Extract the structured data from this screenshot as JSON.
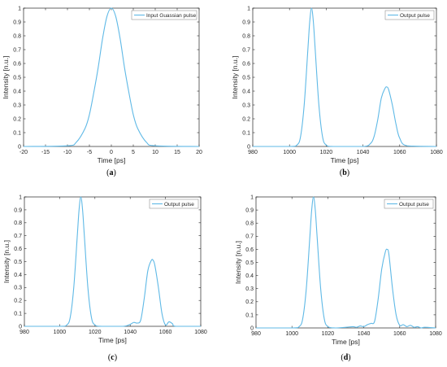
{
  "colors": {
    "line": "#5fb9e6",
    "axis": "#262626",
    "background": "#ffffff"
  },
  "chart_data": [
    {
      "type": "line",
      "caption_letter": "a",
      "xlabel": "Time [ps]",
      "ylabel": "Intensity [n.u.]",
      "xlim": [
        -20,
        20
      ],
      "ylim": [
        0,
        1
      ],
      "xticks": [
        "-20",
        "-15",
        "-10",
        "-5",
        "0",
        "5",
        "10",
        "15",
        "20"
      ],
      "yticks": [
        "0",
        "0.1",
        "0.2",
        "0.3",
        "0.4",
        "0.5",
        "0.6",
        "0.7",
        "0.8",
        "0.9",
        "1"
      ],
      "legend_position": "top-right",
      "series": [
        {
          "name": "Input Guassian pulse",
          "x": [
            -20,
            -10,
            -8,
            -6,
            -5,
            -4,
            -3,
            -2,
            -1,
            0,
            1,
            2,
            3,
            4,
            5,
            6,
            8,
            10,
            20
          ],
          "y": [
            0,
            0.005,
            0.03,
            0.13,
            0.23,
            0.39,
            0.57,
            0.78,
            0.94,
            1,
            0.94,
            0.78,
            0.57,
            0.39,
            0.23,
            0.13,
            0.03,
            0.005,
            0
          ]
        }
      ]
    },
    {
      "type": "line",
      "caption_letter": "b",
      "xlabel": "Time [ps]",
      "ylabel": "Intensity [n.u.]",
      "xlim": [
        980,
        1080
      ],
      "ylim": [
        0,
        1
      ],
      "xticks": [
        "980",
        "1000",
        "1020",
        "1040",
        "1060",
        "1080"
      ],
      "yticks": [
        "0",
        "0.1",
        "0.2",
        "0.3",
        "0.4",
        "0.5",
        "0.6",
        "0.7",
        "0.8",
        "0.9",
        "1"
      ],
      "legend_position": "top-right",
      "series": [
        {
          "name": "Output pulse",
          "x": [
            980,
            1000,
            1004,
            1006,
            1008,
            1010,
            1011,
            1012,
            1013,
            1014,
            1016,
            1018,
            1020,
            1024,
            1040,
            1044,
            1046,
            1048,
            1050,
            1052,
            1053,
            1054,
            1056,
            1058,
            1060,
            1064,
            1080
          ],
          "y": [
            0,
            0,
            0.01,
            0.07,
            0.3,
            0.7,
            0.9,
            1,
            0.9,
            0.7,
            0.3,
            0.07,
            0.01,
            0,
            0,
            0.02,
            0.07,
            0.19,
            0.35,
            0.42,
            0.43,
            0.41,
            0.3,
            0.16,
            0.06,
            0.005,
            0
          ]
        }
      ]
    },
    {
      "type": "line",
      "caption_letter": "c",
      "xlabel": "Time [ps]",
      "ylabel": "Intensity [n.u.]",
      "xlim": [
        980,
        1080
      ],
      "ylim": [
        0,
        1
      ],
      "xticks": [
        "980",
        "1000",
        "1020",
        "1040",
        "1060",
        "1080"
      ],
      "yticks": [
        "0",
        "0.1",
        "0.2",
        "0.3",
        "0.4",
        "0.5",
        "0.6",
        "0.7",
        "0.8",
        "0.9",
        "1"
      ],
      "legend_position": "top-right",
      "series": [
        {
          "name": "Output pulse",
          "x": [
            980,
            1000,
            1004,
            1006,
            1008,
            1010,
            1011,
            1012,
            1013,
            1014,
            1016,
            1018,
            1020,
            1024,
            1036,
            1040,
            1042,
            1044,
            1046,
            1048,
            1050,
            1052,
            1053,
            1054,
            1056,
            1058,
            1060,
            1062,
            1064,
            1066,
            1080
          ],
          "y": [
            0,
            0,
            0.01,
            0.07,
            0.3,
            0.7,
            0.9,
            1,
            0.9,
            0.7,
            0.3,
            0.07,
            0.01,
            0,
            0,
            0.015,
            0.03,
            0.025,
            0.05,
            0.22,
            0.43,
            0.51,
            0.51,
            0.47,
            0.3,
            0.1,
            0.01,
            0.035,
            0.02,
            0,
            0
          ]
        }
      ]
    },
    {
      "type": "line",
      "caption_letter": "d",
      "xlabel": "Time [ps]",
      "ylabel": "Intensity [n.u.]",
      "xlim": [
        980,
        1080
      ],
      "ylim": [
        0,
        1
      ],
      "xticks": [
        "980",
        "1000",
        "1020",
        "1040",
        "1060",
        "1080"
      ],
      "yticks": [
        "0",
        "0.1",
        "0.2",
        "0.3",
        "0.4",
        "0.5",
        "0.6",
        "0.7",
        "0.8",
        "0.9",
        "1"
      ],
      "legend_position": "top-right",
      "series": [
        {
          "name": "Output pulse",
          "x": [
            980,
            1000,
            1004,
            1006,
            1008,
            1010,
            1011,
            1012,
            1013,
            1014,
            1016,
            1018,
            1020,
            1024,
            1030,
            1034,
            1036,
            1038,
            1040,
            1042,
            1044,
            1046,
            1048,
            1050,
            1052,
            1053,
            1054,
            1056,
            1058,
            1060,
            1062,
            1064,
            1066,
            1068,
            1070,
            1072,
            1074,
            1080
          ],
          "y": [
            0,
            0,
            0.01,
            0.07,
            0.3,
            0.7,
            0.9,
            1,
            0.9,
            0.7,
            0.3,
            0.07,
            0.01,
            0,
            0.005,
            0.01,
            0.005,
            0.015,
            0.01,
            0.025,
            0.035,
            0.05,
            0.22,
            0.45,
            0.58,
            0.6,
            0.56,
            0.3,
            0.1,
            0.02,
            0.025,
            0.01,
            0.02,
            0.005,
            0.01,
            0,
            0.005,
            0
          ]
        }
      ]
    }
  ]
}
